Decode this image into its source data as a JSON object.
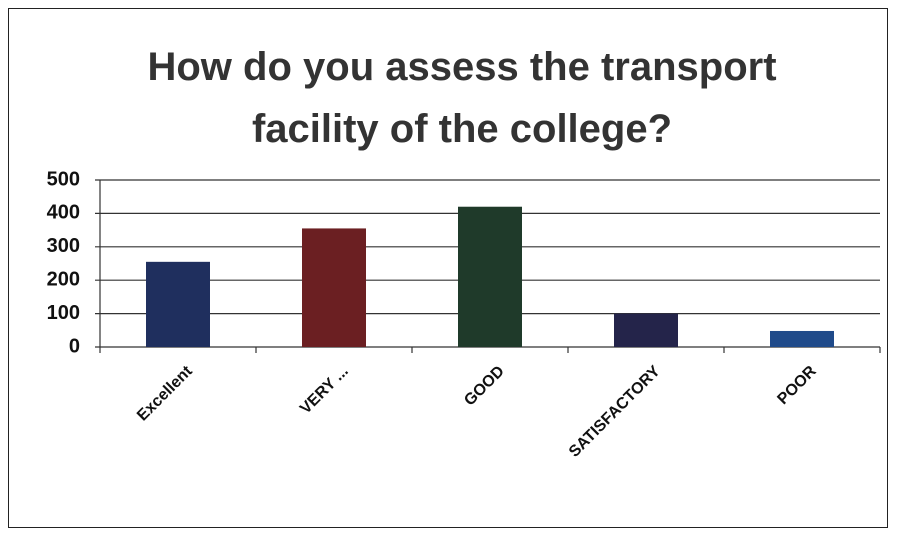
{
  "chart_data": {
    "type": "bar",
    "title": "How do you assess the transport facility of the college?",
    "categories": [
      "Excellent",
      "VERY ...",
      "GOOD",
      "SATISFACTORY",
      "POOR"
    ],
    "values": [
      255,
      355,
      420,
      100,
      48
    ],
    "colors": [
      "#1f2f5e",
      "#6b1f22",
      "#1f3a2a",
      "#24244a",
      "#1f4a8a"
    ],
    "ylim": [
      0,
      500
    ],
    "yticks": [
      0,
      100,
      200,
      300,
      400,
      500
    ],
    "grid": true
  }
}
